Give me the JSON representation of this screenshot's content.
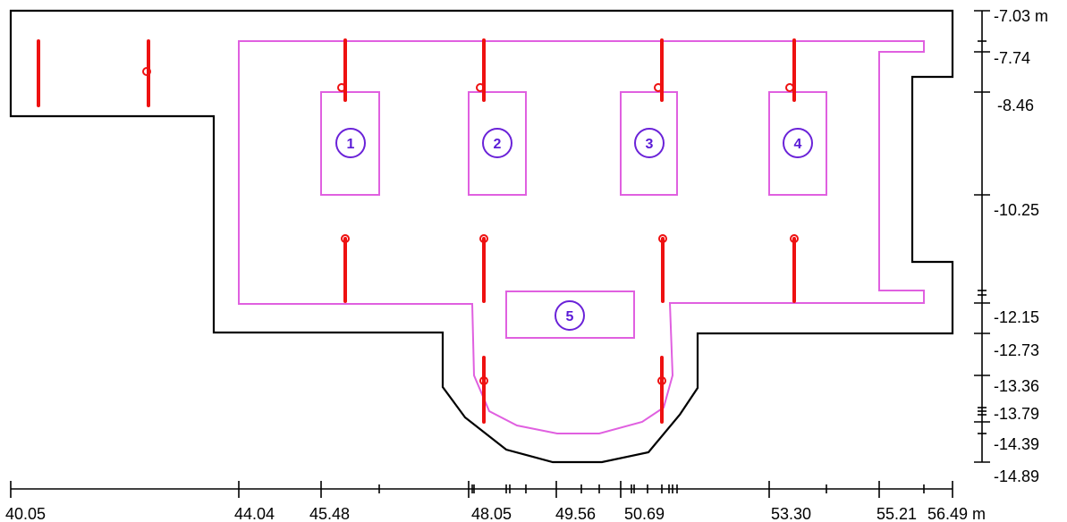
{
  "colors": {
    "outline": "#000000",
    "room_boundary": "#e060e0",
    "fixture": "#ee1111",
    "label": "#6a22d8",
    "axis": "#000000"
  },
  "x_axis": {
    "unit": "m",
    "labels": [
      "40.05",
      "44.04",
      "45.48",
      "48.05",
      "49.56",
      "50.69",
      "53.30",
      "55.21",
      "56.49 m"
    ]
  },
  "y_axis": {
    "unit": "m",
    "labels": [
      "-7.03 m",
      "-7.74",
      "-8.46",
      "-10.25",
      "-12.15",
      "-12.73",
      "-13.36",
      "-13.79",
      "-14.39",
      "-14.89"
    ]
  },
  "luminaires": [
    {
      "label": "1"
    },
    {
      "label": "2"
    },
    {
      "label": "3"
    },
    {
      "label": "4"
    },
    {
      "label": "5"
    }
  ],
  "fixture_icon": "wall-fixture-line",
  "fixture_count": 12
}
